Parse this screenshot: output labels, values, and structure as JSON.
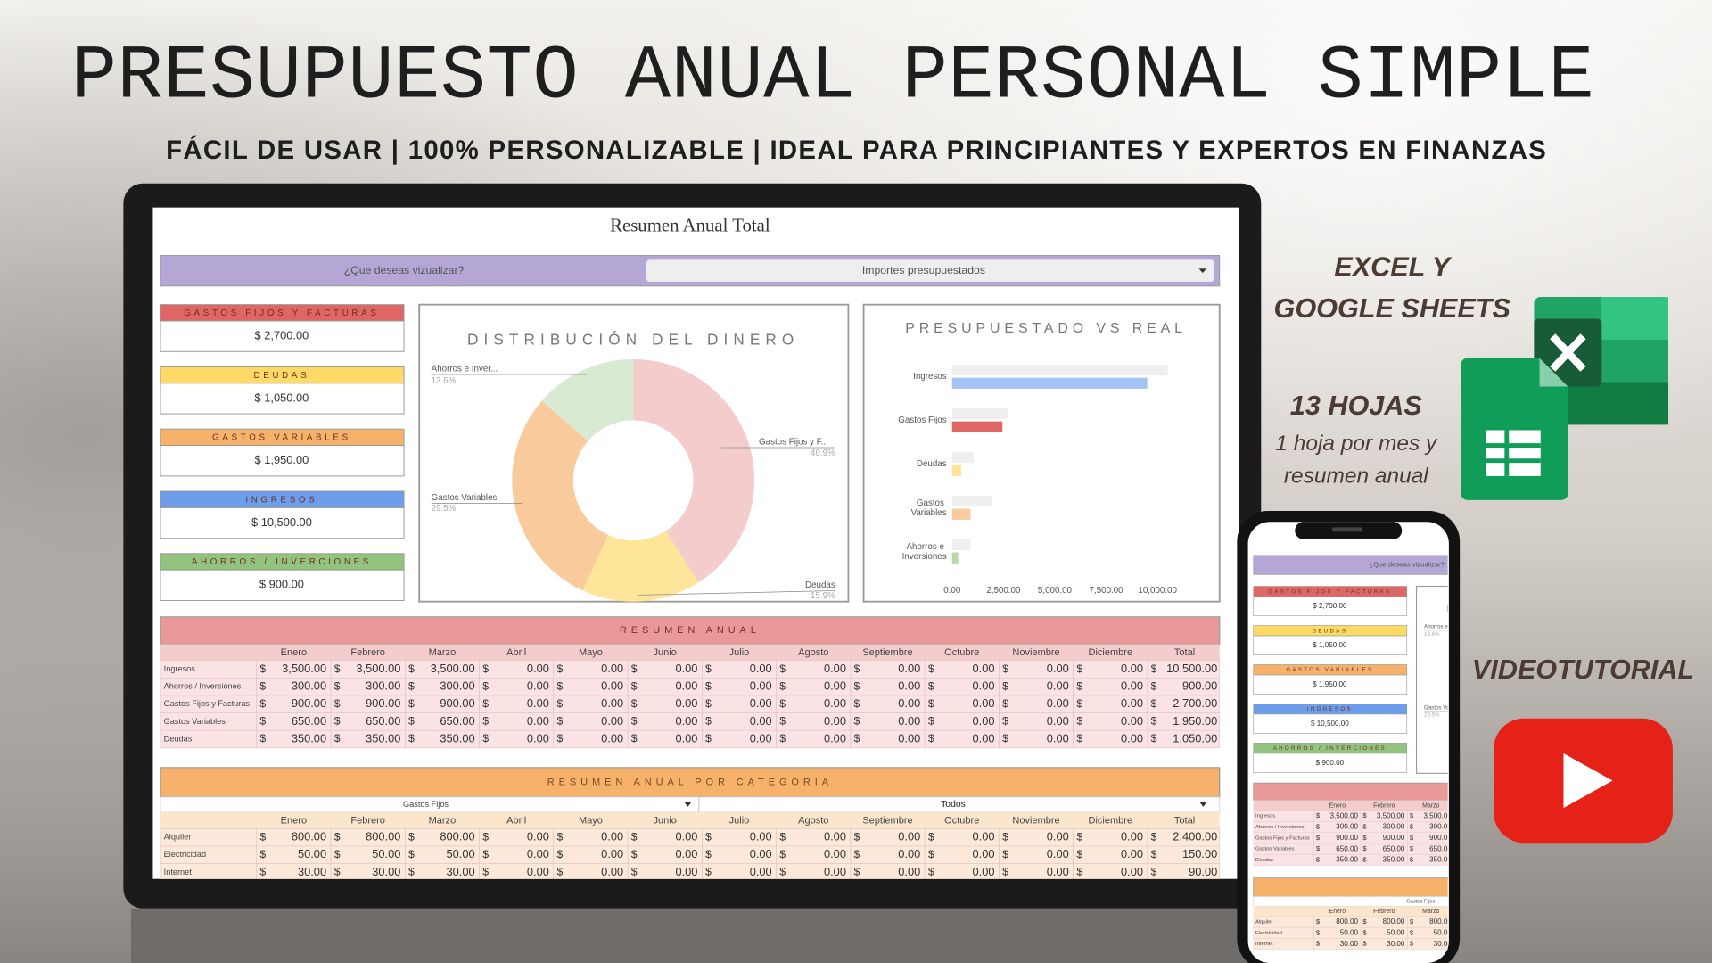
{
  "header": {
    "title": "PRESUPUESTO ANUAL PERSONAL SIMPLE",
    "subtitle": "FÁCIL DE USAR | 100% PERSONALIZABLE | IDEAL PARA PRINCIPIANTES Y EXPERTOS EN FINANZAS"
  },
  "features": {
    "platforms": [
      "EXCEL Y",
      "GOOGLE SHEETS"
    ],
    "sheets_title": "13 HOJAS",
    "sheets_note": [
      "1 hoja por mes y",
      "resumen anual"
    ],
    "video": "VIDEOTUTORIAL"
  },
  "sheet": {
    "title": "Resumen Anual Total",
    "prompt": "¿Que deseas vizualizar?",
    "selection": "Importes presupuestados",
    "currency": "$",
    "cards": [
      {
        "label": "GASTOS FIJOS Y FACTURAS",
        "value": "$ 2,700.00",
        "color": "#e06666"
      },
      {
        "label": "DEUDAS",
        "value": "$ 1,050.00",
        "color": "#ffd966"
      },
      {
        "label": "GASTOS VARIABLES",
        "value": "$ 1,950.00",
        "color": "#f6b26b"
      },
      {
        "label": "INGRESOS",
        "value": "$ 10,500.00",
        "color": "#6d9eeb"
      },
      {
        "label": "AHORROS / INVERCIONES",
        "value": "$ 900.00",
        "color": "#93c47d"
      }
    ],
    "summary_table": {
      "title": "RESUMEN ANUAL",
      "columns": [
        "Enero",
        "Febrero",
        "Marzo",
        "Abril",
        "Mayo",
        "Junio",
        "Julio",
        "Agosto",
        "Septiembre",
        "Octubre",
        "Noviembre",
        "Diciembre",
        "Total"
      ],
      "rows": [
        {
          "label": "Ingresos",
          "cells": [
            "3,500.00",
            "3,500.00",
            "3,500.00",
            "0.00",
            "0.00",
            "0.00",
            "0.00",
            "0.00",
            "0.00",
            "0.00",
            "0.00",
            "0.00",
            "10,500.00"
          ]
        },
        {
          "label": "Ahorros / Inversiones",
          "cells": [
            "300.00",
            "300.00",
            "300.00",
            "0.00",
            "0.00",
            "0.00",
            "0.00",
            "0.00",
            "0.00",
            "0.00",
            "0.00",
            "0.00",
            "900.00"
          ]
        },
        {
          "label": "Gastos Fijos y Facturas",
          "cells": [
            "900.00",
            "900.00",
            "900.00",
            "0.00",
            "0.00",
            "0.00",
            "0.00",
            "0.00",
            "0.00",
            "0.00",
            "0.00",
            "0.00",
            "2,700.00"
          ]
        },
        {
          "label": "Gastos Variables",
          "cells": [
            "650.00",
            "650.00",
            "650.00",
            "0.00",
            "0.00",
            "0.00",
            "0.00",
            "0.00",
            "0.00",
            "0.00",
            "0.00",
            "0.00",
            "1,950.00"
          ]
        },
        {
          "label": "Deudas",
          "cells": [
            "350.00",
            "350.00",
            "350.00",
            "0.00",
            "0.00",
            "0.00",
            "0.00",
            "0.00",
            "0.00",
            "0.00",
            "0.00",
            "0.00",
            "1,050.00"
          ]
        }
      ]
    },
    "category_table": {
      "title": "RESUMEN ANUAL POR CATEGORIA",
      "filter": "Gastos Fijos",
      "subfilter": "Todos",
      "columns": [
        "Enero",
        "Febrero",
        "Marzo",
        "Abril",
        "Mayo",
        "Junio",
        "Julio",
        "Agosto",
        "Septiembre",
        "Octubre",
        "Noviembre",
        "Diciembre",
        "Total"
      ],
      "rows": [
        {
          "label": "Alquiler",
          "cells": [
            "800.00",
            "800.00",
            "800.00",
            "0.00",
            "0.00",
            "0.00",
            "0.00",
            "0.00",
            "0.00",
            "0.00",
            "0.00",
            "0.00",
            "2,400.00"
          ]
        },
        {
          "label": "Electricidad",
          "cells": [
            "50.00",
            "50.00",
            "50.00",
            "0.00",
            "0.00",
            "0.00",
            "0.00",
            "0.00",
            "0.00",
            "0.00",
            "0.00",
            "0.00",
            "150.00"
          ]
        },
        {
          "label": "Internet",
          "cells": [
            "30.00",
            "30.00",
            "30.00",
            "0.00",
            "0.00",
            "0.00",
            "0.00",
            "0.00",
            "0.00",
            "0.00",
            "0.00",
            "0.00",
            "90.00"
          ]
        }
      ]
    }
  },
  "chart_data": [
    {
      "type": "pie",
      "donut": true,
      "title": "DISTRIBUCIÓN DEL DINERO",
      "categories": [
        "Gastos Fijos y F...",
        "Deudas",
        "Gastos Variables",
        "Ahorros e Inver..."
      ],
      "values": [
        40.9,
        15.9,
        29.5,
        13.6
      ],
      "value_labels": [
        "40.9%",
        "15.9%",
        "29.5%",
        "13.6%"
      ],
      "colors": [
        "#f4cccc",
        "#ffe599",
        "#f9cb9c",
        "#d9ead3"
      ]
    },
    {
      "type": "bar",
      "orientation": "horizontal",
      "title": "PRESUPUESTADO VS REAL",
      "categories": [
        "Ingresos",
        "Gastos Fijos",
        "Deudas",
        "Gastos Variables",
        "Ahorros e Inversiones"
      ],
      "series": [
        {
          "color": "#efefef",
          "values": [
            10500,
            2700,
            1050,
            1950,
            900
          ]
        },
        {
          "colors": [
            "#a4c2f4",
            "#e06666",
            "#ffe599",
            "#f9cb9c",
            "#b6d7a8"
          ],
          "values": [
            9500,
            2450,
            450,
            900,
            300
          ]
        }
      ],
      "xlim": [
        0,
        11000
      ],
      "xticks": [
        {
          "value": 0,
          "label": "0.00"
        },
        {
          "value": 2500,
          "label": "2,500.00"
        },
        {
          "value": 5000,
          "label": "5,000.00"
        },
        {
          "value": 7500,
          "label": "7,500.00"
        },
        {
          "value": 10000,
          "label": "10,000.00"
        }
      ]
    }
  ]
}
